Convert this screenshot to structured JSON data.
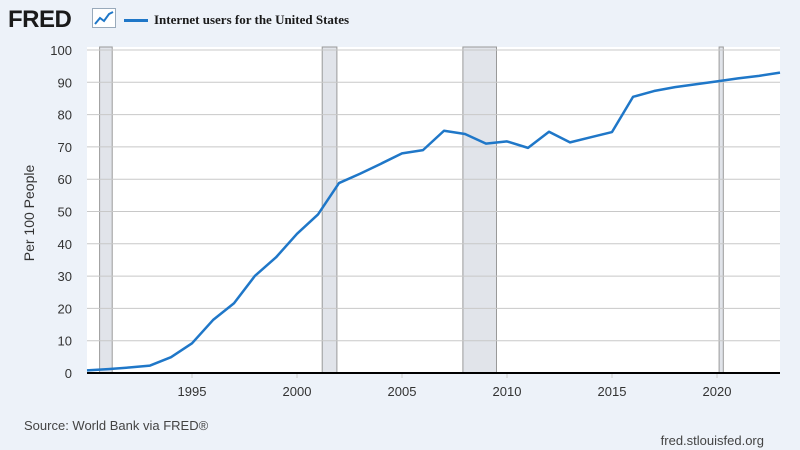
{
  "header": {
    "logo": "FRED",
    "logo_icon": "line-chart-icon"
  },
  "footer": {
    "source": "Source: World Bank via FRED®",
    "site": "fred.stlouisfed.org"
  },
  "colors": {
    "series": "#1f77c8",
    "recession": "#e1e4ea",
    "background": "#edf2f9"
  },
  "chart_data": {
    "type": "line",
    "title": "",
    "xlabel": "",
    "ylabel": "Per 100 People",
    "xlim": [
      1990,
      2023
    ],
    "ylim": [
      0,
      100
    ],
    "grid": true,
    "legend_position": "top-left",
    "x_ticks": [
      1995,
      2000,
      2005,
      2010,
      2015,
      2020
    ],
    "y_ticks": [
      0,
      10,
      20,
      30,
      40,
      50,
      60,
      70,
      80,
      90,
      100
    ],
    "recessions": [
      [
        1990.6,
        1991.2
      ],
      [
        2001.2,
        2001.9
      ],
      [
        2007.9,
        2009.5
      ],
      [
        2020.1,
        2020.3
      ]
    ],
    "series": [
      {
        "name": "Internet users for the United States",
        "x": [
          1990,
          1991,
          1992,
          1993,
          1994,
          1995,
          1996,
          1997,
          1998,
          1999,
          2000,
          2001,
          2002,
          2003,
          2004,
          2005,
          2006,
          2007,
          2008,
          2009,
          2010,
          2011,
          2012,
          2013,
          2014,
          2015,
          2016,
          2017,
          2018,
          2019,
          2020,
          2021,
          2022,
          2023
        ],
        "values": [
          0.8,
          1.2,
          1.7,
          2.3,
          4.9,
          9.2,
          16.4,
          21.6,
          30.1,
          35.8,
          43.1,
          49.1,
          58.8,
          61.7,
          64.8,
          68.0,
          69.0,
          75.0,
          74.0,
          71.0,
          71.7,
          69.7,
          74.7,
          71.4,
          73.0,
          74.6,
          85.5,
          87.3,
          88.5,
          89.4,
          90.3,
          91.2,
          92.0,
          93.0
        ]
      }
    ]
  }
}
